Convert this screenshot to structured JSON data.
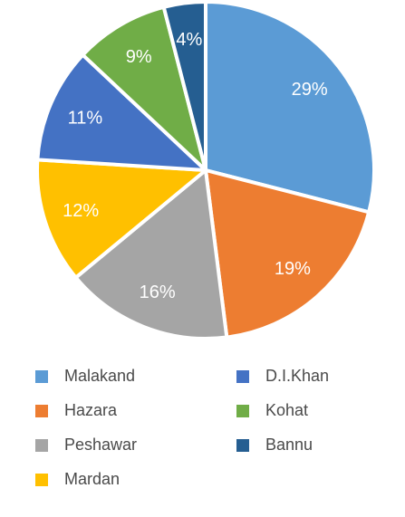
{
  "chart_data": {
    "type": "pie",
    "categories": [
      "Malakand",
      "Hazara",
      "Peshawar",
      "Mardan",
      "D.I.Khan",
      "Kohat",
      "Bannu"
    ],
    "values": [
      29,
      19,
      16,
      12,
      11,
      9,
      4
    ],
    "value_labels": [
      "29%",
      "19%",
      "16%",
      "12%",
      "11%",
      "9%",
      "4%"
    ],
    "colors": [
      "#5B9BD5",
      "#ED7D31",
      "#A5A5A5",
      "#FFC000",
      "#4472C4",
      "#70AD47",
      "#255E91"
    ],
    "legend_placement": "bottom",
    "start": "top",
    "direction": "clockwise"
  }
}
